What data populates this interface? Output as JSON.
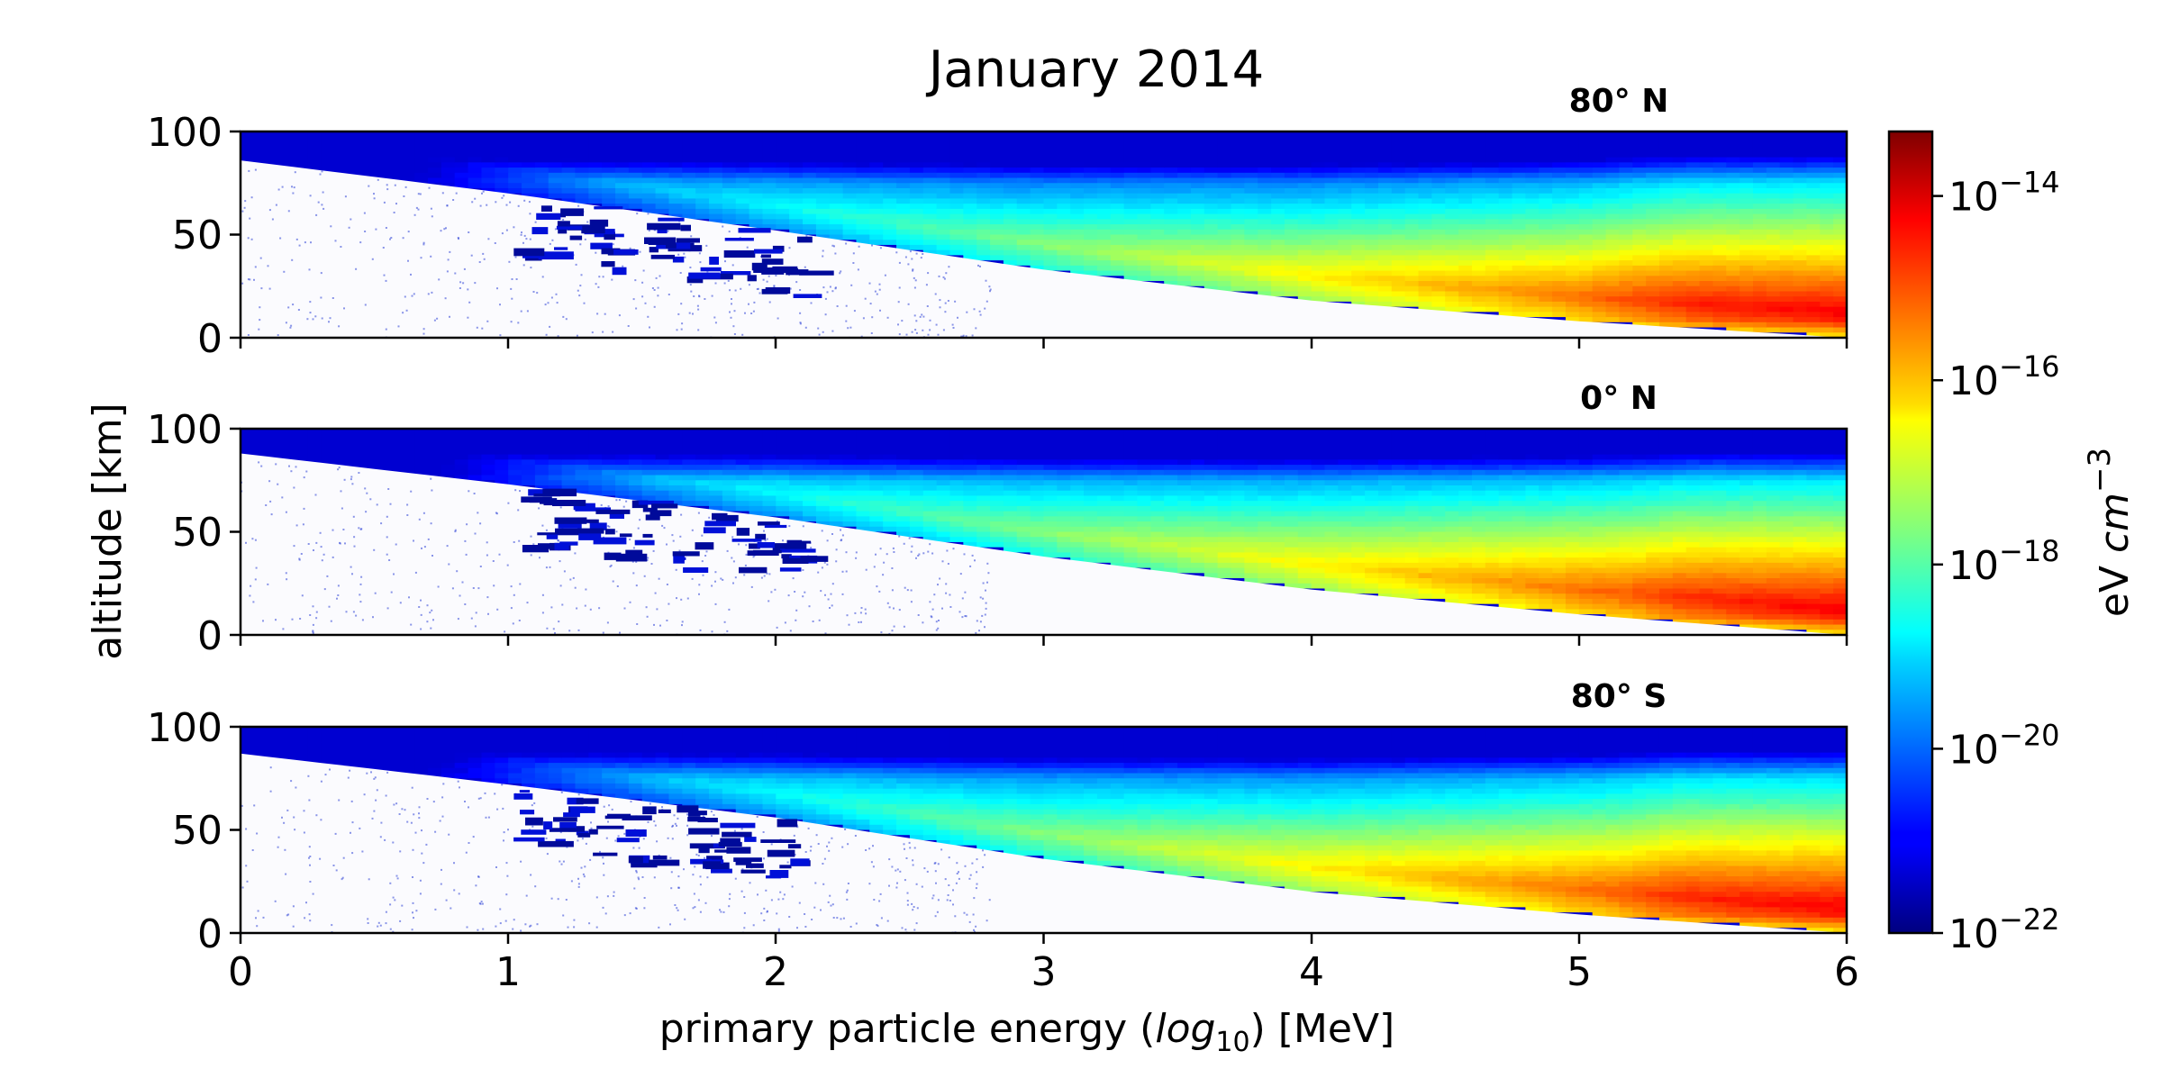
{
  "chart_data": {
    "type": "heatmap",
    "title": "January 2014",
    "xlabel_pre": "primary particle energy (",
    "xlabel_log": "log",
    "xlabel_sub": "10",
    "xlabel_post": ") [MeV]",
    "ylabel": "altitude [km]",
    "xlim": [
      0,
      6
    ],
    "ylim": [
      0,
      100
    ],
    "x_ticks": [
      "0",
      "1",
      "2",
      "3",
      "4",
      "5",
      "6"
    ],
    "y_ticks": [
      "0",
      "50",
      "100"
    ],
    "panels": [
      {
        "label": "80° N",
        "cutoff_altitude_km": [
          86,
          70,
          52,
          33,
          18,
          8,
          0
        ],
        "peak_altitude_km": 8
      },
      {
        "label": "0° N",
        "cutoff_altitude_km": [
          88,
          73,
          57,
          38,
          22,
          10,
          0
        ],
        "peak_altitude_km": 8
      },
      {
        "label": "80° S",
        "cutoff_altitude_km": [
          87,
          72,
          56,
          36,
          20,
          9,
          0
        ],
        "peak_altitude_km": 8
      }
    ],
    "colorbar": {
      "label_pre": "eV ",
      "label_unit": "cm",
      "label_exp": "−3",
      "scale": "log",
      "range_exponent": [
        -22,
        -13.3
      ],
      "ticks": [
        {
          "base": "10",
          "exp": "−14",
          "value": -14
        },
        {
          "base": "10",
          "exp": "−16",
          "value": -16
        },
        {
          "base": "10",
          "exp": "−18",
          "value": -18
        },
        {
          "base": "10",
          "exp": "−20",
          "value": -20
        },
        {
          "base": "10",
          "exp": "−22",
          "value": -22
        }
      ],
      "colormap": "jet"
    }
  }
}
